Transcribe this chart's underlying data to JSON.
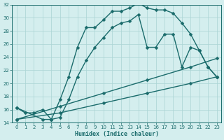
{
  "xlabel": "Humidex (Indice chaleur)",
  "bg_color": "#d4eeee",
  "grid_color": "#aad4d4",
  "line_color": "#1a6b6b",
  "xlim": [
    -0.5,
    23.5
  ],
  "ylim": [
    14,
    32
  ],
  "xtick_labels": [
    "0",
    "1",
    "2",
    "3",
    "4",
    "5",
    "6",
    "7",
    "8",
    "9",
    "10",
    "11",
    "12",
    "13",
    "14",
    "15",
    "16",
    "17",
    "18",
    "19",
    "20",
    "21",
    "22",
    "23"
  ],
  "xticks": [
    0,
    1,
    2,
    3,
    4,
    5,
    6,
    7,
    8,
    9,
    10,
    11,
    12,
    13,
    14,
    15,
    16,
    17,
    18,
    19,
    20,
    21,
    22,
    23
  ],
  "yticks": [
    14,
    16,
    18,
    20,
    22,
    24,
    26,
    28,
    30,
    32
  ],
  "line1_x": [
    0,
    1,
    2,
    3,
    4,
    5,
    6,
    7,
    8,
    9,
    10,
    11,
    12,
    13,
    14,
    15,
    16,
    17,
    18,
    19,
    20,
    21,
    22,
    23
  ],
  "line1_y": [
    16.3,
    15.5,
    15.5,
    16.0,
    14.5,
    17.5,
    21.0,
    25.5,
    28.5,
    28.5,
    29.7,
    31.0,
    31.0,
    31.5,
    32.2,
    31.5,
    31.2,
    31.2,
    30.7,
    29.2,
    27.5,
    25.0,
    22.5,
    21.0
  ],
  "line2_x": [
    0,
    3,
    4,
    5,
    6,
    7,
    8,
    9,
    10,
    11,
    12,
    13,
    14,
    15,
    16,
    17,
    18,
    19,
    20,
    21,
    22,
    23
  ],
  "line2_y": [
    16.3,
    14.5,
    14.5,
    14.8,
    17.5,
    21.0,
    23.5,
    25.5,
    27.0,
    28.5,
    29.2,
    29.5,
    30.5,
    25.5,
    25.5,
    27.5,
    27.5,
    22.5,
    25.5,
    25.0,
    22.5,
    21.0
  ],
  "line3_x": [
    0,
    5,
    10,
    15,
    20,
    23
  ],
  "line3_y": [
    14.5,
    15.5,
    17.0,
    18.5,
    20.0,
    21.0
  ],
  "line4_x": [
    0,
    5,
    10,
    15,
    20,
    23
  ],
  "line4_y": [
    14.5,
    16.5,
    18.5,
    20.5,
    22.5,
    23.8
  ],
  "marker": "D",
  "markersize": 2.5,
  "linewidth": 1.0
}
